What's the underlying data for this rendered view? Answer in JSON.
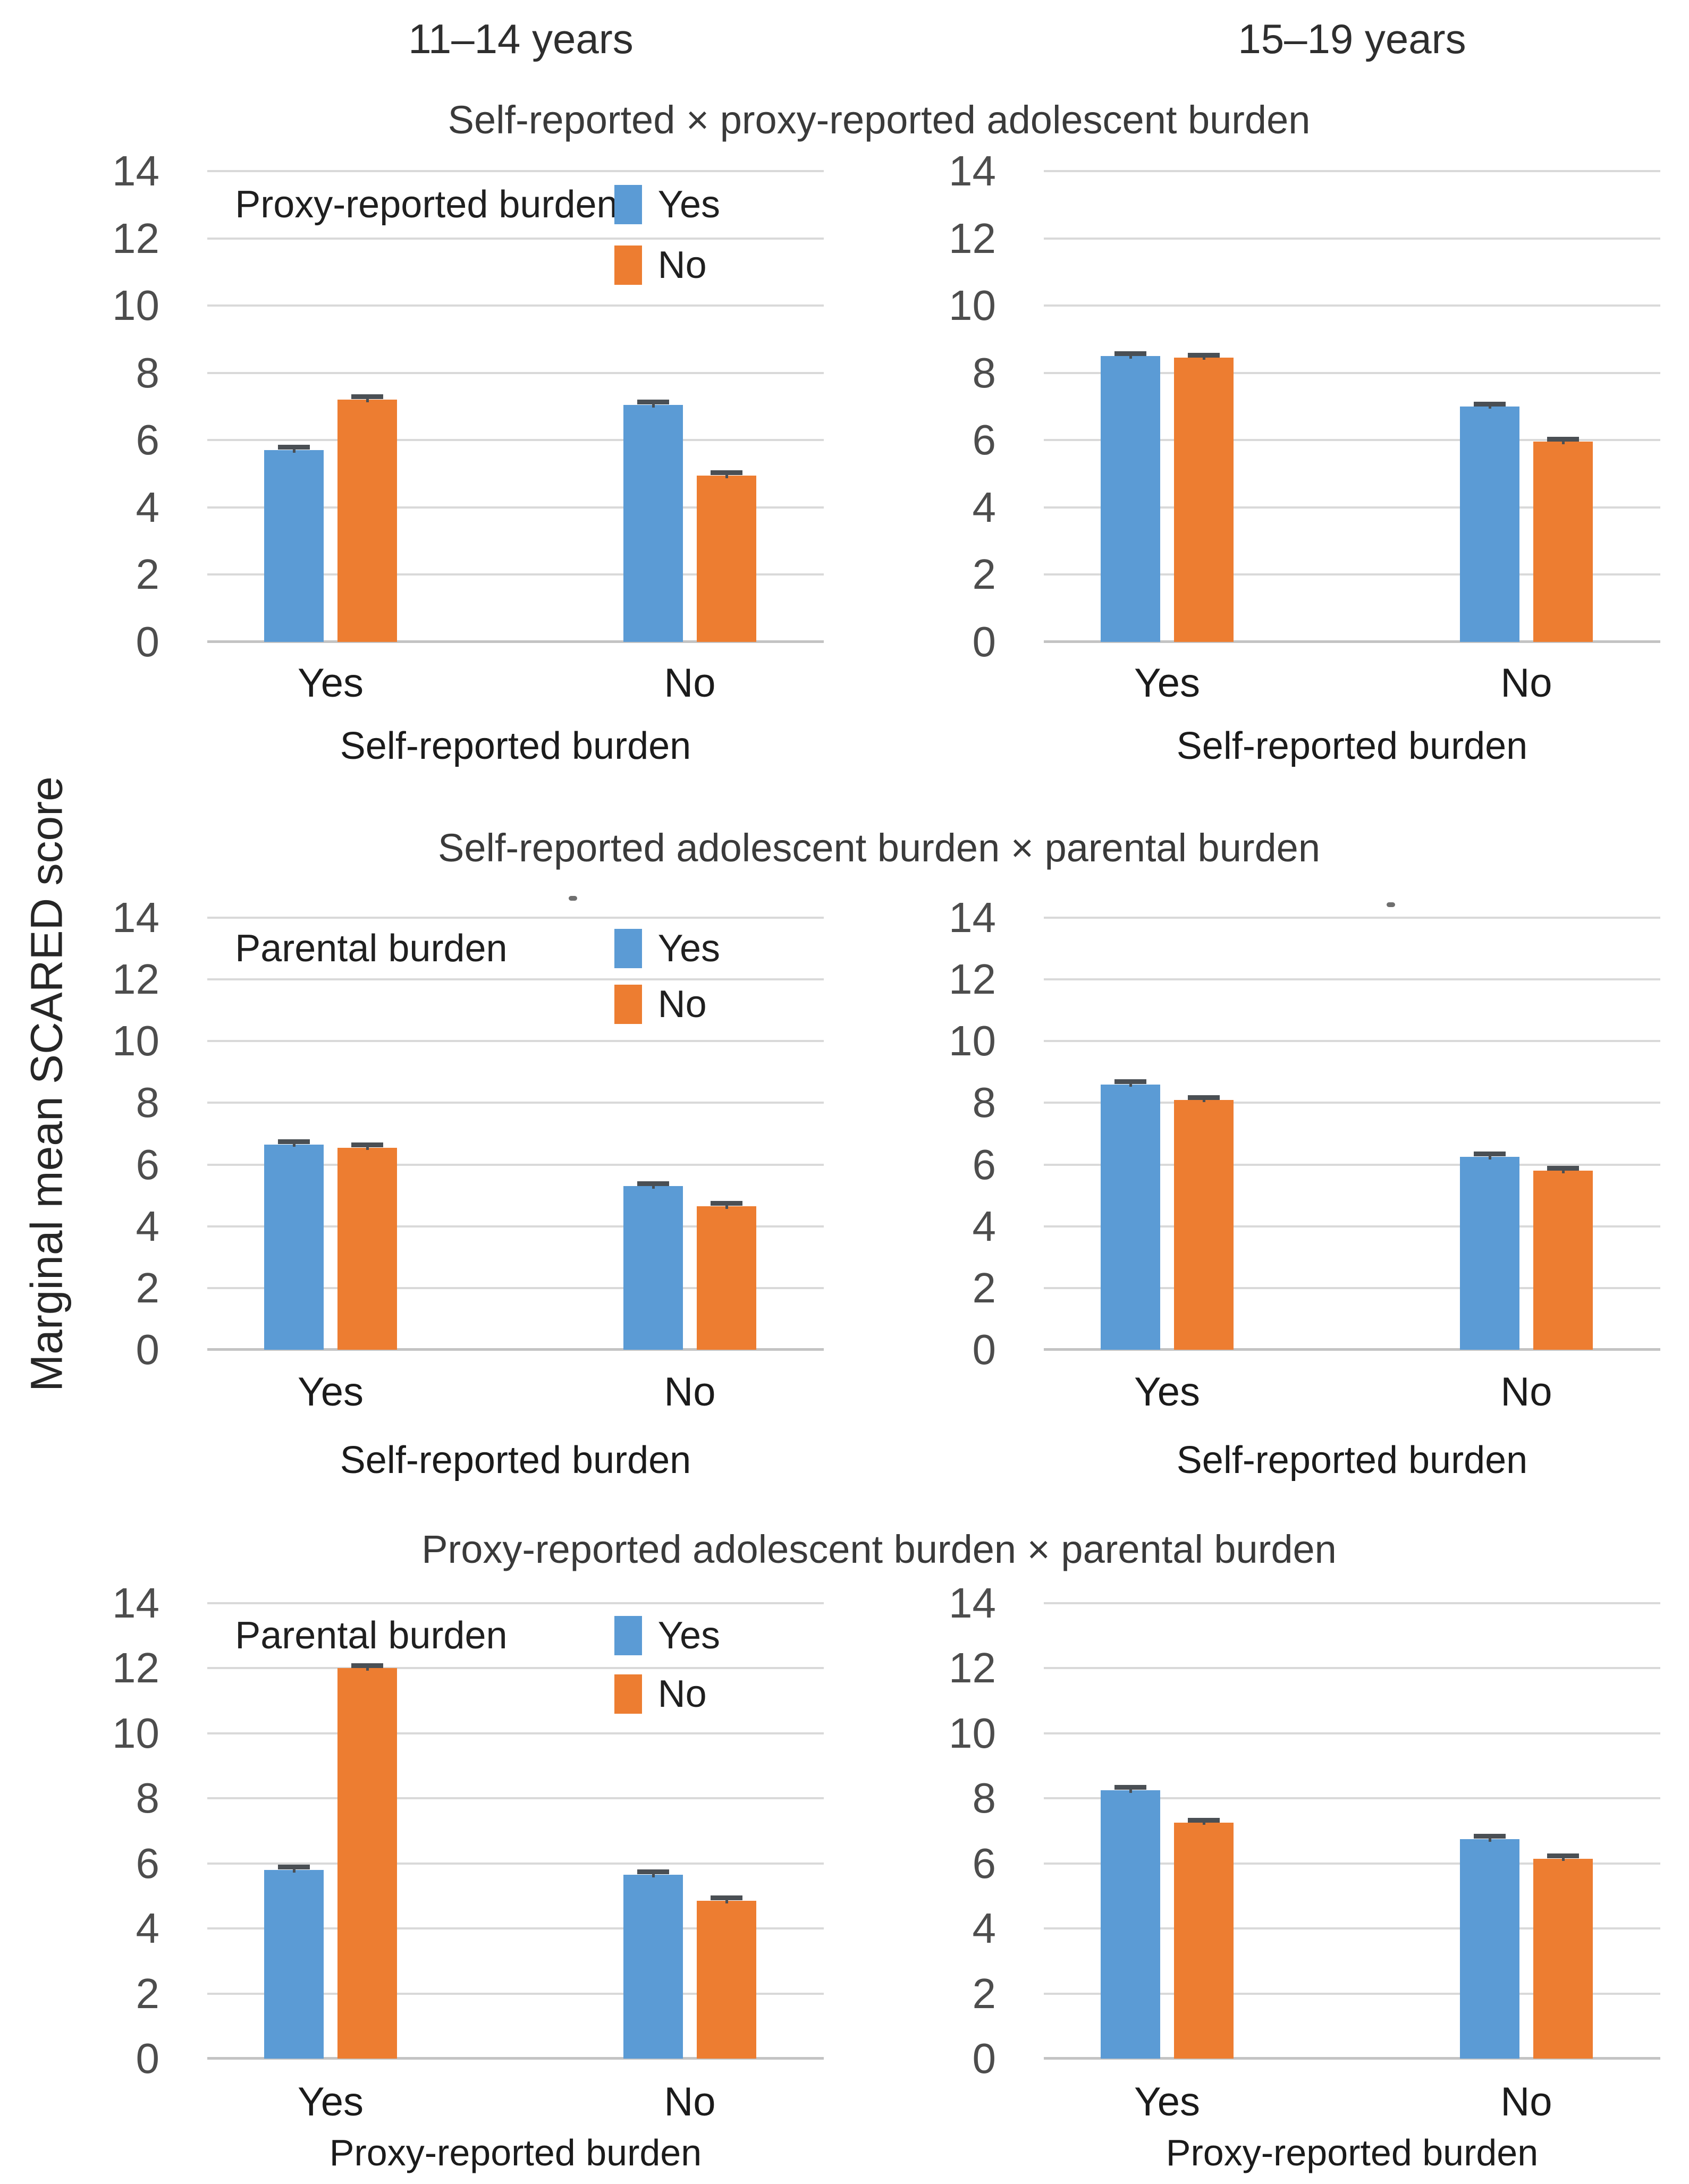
{
  "figure": {
    "column_headers": [
      "11–14 years",
      "15–19 years"
    ],
    "y_axis_label": "Marginal mean SCARED score",
    "colors": {
      "series_yes_blue": "#5B9BD5",
      "series_no_orange": "#ED7D31",
      "gridline": "#D9D9D9",
      "axis_line": "#C3C3C3",
      "error_bar": "#4A4F54"
    }
  },
  "chart_data": [
    {
      "type": "bar",
      "panel": "top-left",
      "age_group": "11–14 years",
      "title": "Self-reported × proxy-reported adolescent burden",
      "xlabel": "Self-reported burden",
      "ylabel": "Marginal mean SCARED score",
      "ylim": [
        0,
        14
      ],
      "yticks": [
        0,
        2,
        4,
        6,
        8,
        10,
        12,
        14
      ],
      "categories": [
        "Yes",
        "No"
      ],
      "grid": true,
      "legend": {
        "visible": true,
        "title": "Proxy-reported burden",
        "position": "top-inside"
      },
      "series": [
        {
          "name": "Yes",
          "color": "#5B9BD5",
          "values": [
            5.7,
            7.05
          ],
          "errors": [
            0.08,
            0.08
          ]
        },
        {
          "name": "No",
          "color": "#ED7D31",
          "values": [
            7.2,
            4.95
          ],
          "errors": [
            0.08,
            0.08
          ]
        }
      ]
    },
    {
      "type": "bar",
      "panel": "top-right",
      "age_group": "15–19 years",
      "title": "Self-reported × proxy-reported adolescent burden",
      "xlabel": "Self-reported burden",
      "ylabel": "Marginal mean SCARED score",
      "ylim": [
        0,
        14
      ],
      "yticks": [
        0,
        2,
        4,
        6,
        8,
        10,
        12,
        14
      ],
      "categories": [
        "Yes",
        "No"
      ],
      "grid": true,
      "legend": {
        "visible": false,
        "title": "",
        "position": ""
      },
      "series": [
        {
          "name": "Yes",
          "color": "#5B9BD5",
          "values": [
            8.5,
            7.0
          ],
          "errors": [
            0.07,
            0.07
          ]
        },
        {
          "name": "No",
          "color": "#ED7D31",
          "values": [
            8.45,
            5.95
          ],
          "errors": [
            0.06,
            0.07
          ]
        }
      ]
    },
    {
      "type": "bar",
      "panel": "middle-left",
      "age_group": "11–14 years",
      "title": "Self-reported adolescent burden × parental burden",
      "xlabel": "Self-reported burden",
      "ylabel": "Marginal mean SCARED score",
      "ylim": [
        0,
        14
      ],
      "yticks": [
        0,
        2,
        4,
        6,
        8,
        10,
        12,
        14
      ],
      "categories": [
        "Yes",
        "No"
      ],
      "grid": true,
      "legend": {
        "visible": true,
        "title": "Parental burden",
        "position": "top-inside"
      },
      "series": [
        {
          "name": "Yes",
          "color": "#5B9BD5",
          "values": [
            6.65,
            5.3
          ],
          "errors": [
            0.08,
            0.08
          ]
        },
        {
          "name": "No",
          "color": "#ED7D31",
          "values": [
            6.55,
            4.65
          ],
          "errors": [
            0.08,
            0.08
          ]
        }
      ]
    },
    {
      "type": "bar",
      "panel": "middle-right",
      "age_group": "15–19 years",
      "title": "Self-reported adolescent burden × parental burden",
      "xlabel": "Self-reported burden",
      "ylabel": "Marginal mean SCARED score",
      "ylim": [
        0,
        14
      ],
      "yticks": [
        0,
        2,
        4,
        6,
        8,
        10,
        12,
        14
      ],
      "categories": [
        "Yes",
        "No"
      ],
      "grid": true,
      "legend": {
        "visible": false,
        "title": "",
        "position": ""
      },
      "series": [
        {
          "name": "Yes",
          "color": "#5B9BD5",
          "values": [
            8.6,
            6.25
          ],
          "errors": [
            0.08,
            0.08
          ]
        },
        {
          "name": "No",
          "color": "#ED7D31",
          "values": [
            8.1,
            5.8
          ],
          "errors": [
            0.07,
            0.08
          ]
        }
      ]
    },
    {
      "type": "bar",
      "panel": "bottom-left",
      "age_group": "11–14 years",
      "title": "Proxy-reported adolescent burden × parental burden",
      "xlabel": "Proxy-reported burden",
      "ylabel": "Marginal mean SCARED score",
      "ylim": [
        0,
        14
      ],
      "yticks": [
        0,
        2,
        4,
        6,
        8,
        10,
        12,
        14
      ],
      "categories": [
        "Yes",
        "No"
      ],
      "grid": true,
      "legend": {
        "visible": true,
        "title": "Parental burden",
        "position": "top-inside"
      },
      "series": [
        {
          "name": "Yes",
          "color": "#5B9BD5",
          "values": [
            5.8,
            5.65
          ],
          "errors": [
            0.08,
            0.08
          ]
        },
        {
          "name": "No",
          "color": "#ED7D31",
          "values": [
            12.0,
            4.85
          ],
          "errors": [
            0.07,
            0.08
          ]
        }
      ]
    },
    {
      "type": "bar",
      "panel": "bottom-right",
      "age_group": "15–19 years",
      "title": "Proxy-reported adolescent burden × parental burden",
      "xlabel": "Proxy-reported burden",
      "ylabel": "Marginal mean SCARED score",
      "ylim": [
        0,
        14
      ],
      "yticks": [
        0,
        2,
        4,
        6,
        8,
        10,
        12,
        14
      ],
      "categories": [
        "Yes",
        "No"
      ],
      "grid": true,
      "legend": {
        "visible": false,
        "title": "",
        "position": ""
      },
      "series": [
        {
          "name": "Yes",
          "color": "#5B9BD5",
          "values": [
            8.25,
            6.75
          ],
          "errors": [
            0.08,
            0.08
          ]
        },
        {
          "name": "No",
          "color": "#ED7D31",
          "values": [
            7.25,
            6.15
          ],
          "errors": [
            0.07,
            0.07
          ]
        }
      ]
    }
  ]
}
